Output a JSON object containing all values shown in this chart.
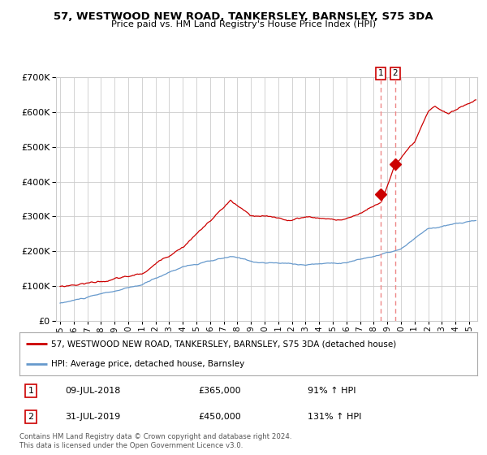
{
  "title": "57, WESTWOOD NEW ROAD, TANKERSLEY, BARNSLEY, S75 3DA",
  "subtitle": "Price paid vs. HM Land Registry's House Price Index (HPI)",
  "legend_line1": "57, WESTWOOD NEW ROAD, TANKERSLEY, BARNSLEY, S75 3DA (detached house)",
  "legend_line2": "HPI: Average price, detached house, Barnsley",
  "annotation1_date": "09-JUL-2018",
  "annotation1_price": "£365,000",
  "annotation1_hpi": "91% ↑ HPI",
  "annotation2_date": "31-JUL-2019",
  "annotation2_price": "£450,000",
  "annotation2_hpi": "131% ↑ HPI",
  "footer": "Contains HM Land Registry data © Crown copyright and database right 2024.\nThis data is licensed under the Open Government Licence v3.0.",
  "red_color": "#cc0000",
  "blue_color": "#6699cc",
  "dashed_color": "#ee8888",
  "grid_color": "#cccccc",
  "bg_color": "#ffffff",
  "ylim": [
    0,
    700000
  ],
  "yticks": [
    0,
    100000,
    200000,
    300000,
    400000,
    500000,
    600000,
    700000
  ],
  "sale1_year": 2018.53,
  "sale1_value": 365000,
  "sale2_year": 2019.58,
  "sale2_value": 450000
}
